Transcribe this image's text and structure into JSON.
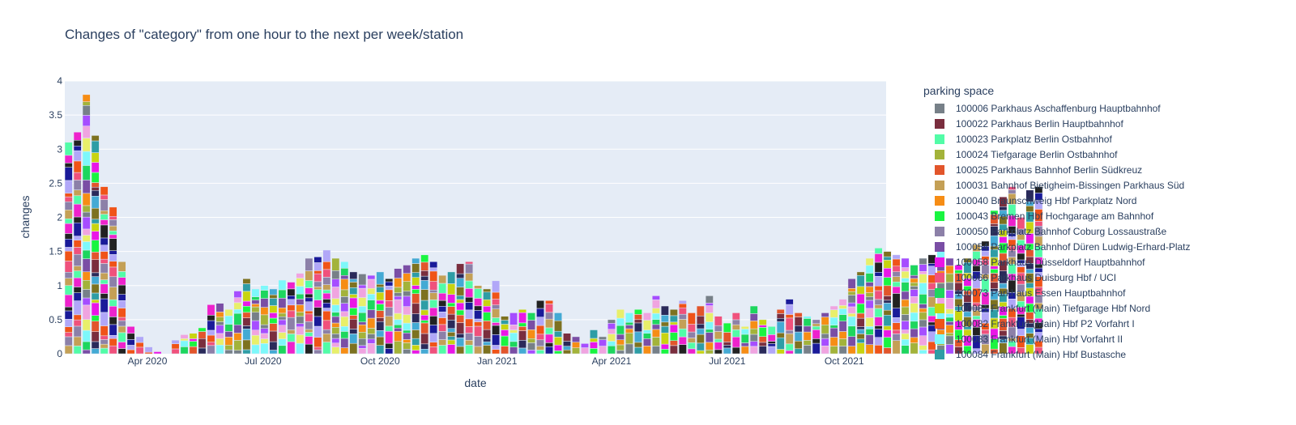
{
  "chart_data": {
    "type": "bar",
    "barmode": "stack",
    "title": "Changes of \"category\" from one hour to the next per week/station",
    "xlabel": "date",
    "ylabel": "changes",
    "ylim": [
      0,
      4
    ],
    "yticks": [
      "0",
      "0.5",
      "1",
      "1.5",
      "2",
      "2.5",
      "3",
      "3.5",
      "4"
    ],
    "xlim": [
      "2020-01-27",
      "2021-11-03"
    ],
    "xticks": [
      {
        "date": "2020-04-01",
        "label": "Apr 2020"
      },
      {
        "date": "2020-07-01",
        "label": "Jul 2020"
      },
      {
        "date": "2020-10-01",
        "label": "Oct 2020"
      },
      {
        "date": "2021-01-01",
        "label": "Jan 2021"
      },
      {
        "date": "2021-04-01",
        "label": "Apr 2021"
      },
      {
        "date": "2021-07-01",
        "label": "Jul 2021"
      },
      {
        "date": "2021-10-01",
        "label": "Oct 2021"
      }
    ],
    "start_week": "2020-01-30",
    "grid": true,
    "legend_title": "parking space",
    "legend_position": "right",
    "weekly_totals": [
      3.1,
      3.25,
      3.8,
      3.2,
      2.45,
      2.15,
      1.35,
      0.4,
      0.25,
      0.1,
      0.03,
      0.0,
      0.2,
      0.28,
      0.3,
      0.38,
      0.72,
      0.74,
      0.65,
      0.92,
      1.1,
      0.95,
      1.0,
      0.95,
      1.08,
      1.05,
      1.18,
      1.4,
      1.42,
      1.52,
      1.4,
      1.35,
      1.2,
      1.17,
      1.15,
      1.2,
      1.1,
      1.25,
      1.3,
      1.4,
      1.45,
      1.35,
      1.15,
      1.2,
      1.32,
      1.35,
      1.0,
      0.95,
      1.07,
      0.55,
      0.6,
      0.65,
      0.6,
      0.78,
      0.78,
      0.6,
      0.3,
      0.25,
      0.15,
      0.35,
      0.25,
      0.5,
      0.65,
      0.6,
      0.65,
      0.6,
      0.85,
      0.7,
      0.65,
      0.78,
      0.6,
      0.7,
      0.85,
      0.55,
      0.45,
      0.6,
      0.4,
      0.7,
      0.5,
      0.4,
      0.65,
      0.8,
      0.6,
      0.55,
      0.5,
      0.6,
      0.7,
      0.8,
      1.1,
      1.2,
      1.4,
      1.55,
      1.5,
      1.45,
      1.4,
      1.3,
      1.4,
      1.45,
      1.5,
      1.4,
      1.3,
      1.4,
      1.6,
      1.65,
      2.1,
      2.3,
      2.45,
      2.0,
      2.4,
      2.45
    ],
    "series": [
      {
        "name": "100006 Parkhaus Aschaffenburg Hauptbahnhof",
        "color": "#778088"
      },
      {
        "name": "100022 Parkhaus Berlin Hauptbahnhof",
        "color": "#7a2e3e"
      },
      {
        "name": "100023 Parkplatz Berlin Ostbahnhof",
        "color": "#52fca7"
      },
      {
        "name": "100024 Tiefgarage Berlin Ostbahnhof",
        "color": "#a3b33a"
      },
      {
        "name": "100025 Parkhaus Bahnhof Berlin Südkreuz",
        "color": "#e2552b"
      },
      {
        "name": "100031 Bahnhof Bietigheim-Bissingen Parkhaus Süd",
        "color": "#c4a056"
      },
      {
        "name": "100040 Braunschweig Hbf Parkplatz Nord",
        "color": "#f68d15"
      },
      {
        "name": "100043 Bremen Hbf Hochgarage am Bahnhof",
        "color": "#19f540"
      },
      {
        "name": "100050 Parkplatz Bahnhof Coburg Lossaustraße",
        "color": "#8c80a8"
      },
      {
        "name": "100054 Parkplatz Bahnhof Düren Ludwig-Erhard-Platz",
        "color": "#7a4ea5"
      },
      {
        "name": "100058 Parkhaus Düsseldorf Hauptbahnhof",
        "color": "#ea16e6"
      },
      {
        "name": "100066 Parkhaus Duisburg Hbf / UCI",
        "color": "#f0517c"
      },
      {
        "name": "100073 Parkhaus Essen Hauptbahnhof",
        "color": "#1dd65e"
      },
      {
        "name": "100081 Frankfurt (Main) Tiefgarage Hbf Nord",
        "color": "#c8d410"
      },
      {
        "name": "100082 Frankfurt (Main) Hbf P2 Vorfahrt I",
        "color": "#f05318"
      },
      {
        "name": "100083 Frankfurt (Main) Hbf Vorfahrt II",
        "color": "#7df8fa"
      },
      {
        "name": "100084 Frankfurt (Main) Hbf Bustasche",
        "color": "#2e9da5"
      }
    ],
    "extra_colors": [
      "#b1a7f8",
      "#e8ef6a",
      "#7d7220",
      "#1a1a99",
      "#f0a4e0",
      "#44aad4",
      "#222222",
      "#a64dff",
      "#2a2a5a",
      "#ee22cc"
    ]
  }
}
